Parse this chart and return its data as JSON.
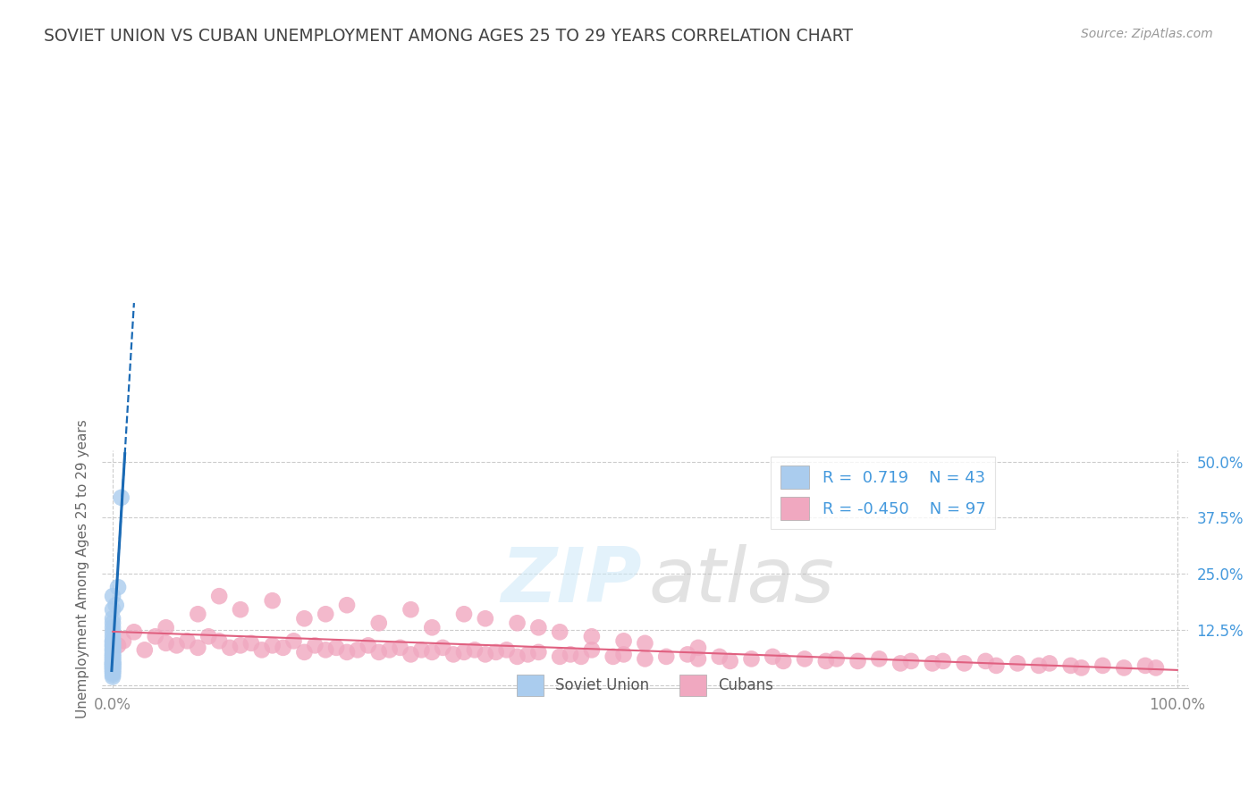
{
  "title": "SOVIET UNION VS CUBAN UNEMPLOYMENT AMONG AGES 25 TO 29 YEARS CORRELATION CHART",
  "source": "Source: ZipAtlas.com",
  "ylabel": "Unemployment Among Ages 25 to 29 years",
  "xlim": [
    -0.01,
    1.01
  ],
  "ylim": [
    -0.005,
    0.525
  ],
  "xtick_positions": [
    0.0,
    1.0
  ],
  "xtick_labels": [
    "0.0%",
    "100.0%"
  ],
  "ytick_positions": [
    0.0,
    0.125,
    0.25,
    0.375,
    0.5
  ],
  "ytick_labels": [
    "",
    "12.5%",
    "25.0%",
    "37.5%",
    "50.0%"
  ],
  "grid_yticks": [
    0.0,
    0.125,
    0.25,
    0.375,
    0.5
  ],
  "grid_xticks": [
    0.0,
    1.0
  ],
  "legend_r1": "R =  0.719",
  "legend_n1": "N = 43",
  "legend_r2": "R = -0.450",
  "legend_n2": "N = 97",
  "soviet_color": "#aaccee",
  "cuban_color": "#f0a8c0",
  "soviet_trend_color": "#1a6ab5",
  "cuban_trend_color": "#e06080",
  "background_color": "#ffffff",
  "grid_color": "#cccccc",
  "title_color": "#444444",
  "tick_color_right": "#4499dd",
  "tick_color_bottom": "#aaaaaa",
  "soviet_x": [
    0.0,
    0.0,
    0.0,
    0.0,
    0.0,
    0.0,
    0.0,
    0.0,
    0.0,
    0.0,
    0.0,
    0.0,
    0.0,
    0.0,
    0.0,
    0.0,
    0.0,
    0.0,
    0.0,
    0.0,
    0.0,
    0.0,
    0.0,
    0.0,
    0.0,
    0.0,
    0.0,
    0.0,
    0.0,
    0.0,
    0.0,
    0.0,
    0.0,
    0.0,
    0.0,
    0.0,
    0.0,
    0.0,
    0.0,
    0.0,
    0.003,
    0.005,
    0.008
  ],
  "soviet_y": [
    0.02,
    0.025,
    0.03,
    0.03,
    0.035,
    0.035,
    0.04,
    0.04,
    0.04,
    0.045,
    0.045,
    0.045,
    0.05,
    0.05,
    0.05,
    0.05,
    0.055,
    0.055,
    0.06,
    0.06,
    0.065,
    0.065,
    0.07,
    0.07,
    0.075,
    0.08,
    0.08,
    0.085,
    0.09,
    0.09,
    0.095,
    0.1,
    0.1,
    0.11,
    0.12,
    0.13,
    0.14,
    0.15,
    0.17,
    0.2,
    0.18,
    0.22,
    0.42
  ],
  "cuban_x": [
    0.005,
    0.01,
    0.02,
    0.03,
    0.04,
    0.05,
    0.06,
    0.07,
    0.08,
    0.09,
    0.1,
    0.11,
    0.12,
    0.13,
    0.14,
    0.15,
    0.16,
    0.17,
    0.18,
    0.19,
    0.2,
    0.21,
    0.22,
    0.23,
    0.24,
    0.25,
    0.26,
    0.27,
    0.28,
    0.29,
    0.3,
    0.31,
    0.32,
    0.33,
    0.34,
    0.35,
    0.36,
    0.37,
    0.38,
    0.39,
    0.4,
    0.42,
    0.43,
    0.44,
    0.45,
    0.47,
    0.48,
    0.5,
    0.52,
    0.54,
    0.55,
    0.57,
    0.58,
    0.6,
    0.62,
    0.63,
    0.65,
    0.67,
    0.68,
    0.7,
    0.72,
    0.74,
    0.75,
    0.77,
    0.78,
    0.8,
    0.82,
    0.83,
    0.85,
    0.87,
    0.88,
    0.9,
    0.91,
    0.93,
    0.95,
    0.97,
    0.98,
    0.05,
    0.08,
    0.1,
    0.12,
    0.15,
    0.18,
    0.2,
    0.22,
    0.25,
    0.28,
    0.3,
    0.33,
    0.35,
    0.38,
    0.4,
    0.42,
    0.45,
    0.48,
    0.5,
    0.55
  ],
  "cuban_y": [
    0.09,
    0.1,
    0.12,
    0.08,
    0.11,
    0.095,
    0.09,
    0.1,
    0.085,
    0.11,
    0.1,
    0.085,
    0.09,
    0.095,
    0.08,
    0.09,
    0.085,
    0.1,
    0.075,
    0.09,
    0.08,
    0.085,
    0.075,
    0.08,
    0.09,
    0.075,
    0.08,
    0.085,
    0.07,
    0.08,
    0.075,
    0.085,
    0.07,
    0.075,
    0.08,
    0.07,
    0.075,
    0.08,
    0.065,
    0.07,
    0.075,
    0.065,
    0.07,
    0.065,
    0.08,
    0.065,
    0.07,
    0.06,
    0.065,
    0.07,
    0.06,
    0.065,
    0.055,
    0.06,
    0.065,
    0.055,
    0.06,
    0.055,
    0.06,
    0.055,
    0.06,
    0.05,
    0.055,
    0.05,
    0.055,
    0.05,
    0.055,
    0.045,
    0.05,
    0.045,
    0.05,
    0.045,
    0.04,
    0.045,
    0.04,
    0.045,
    0.04,
    0.13,
    0.16,
    0.2,
    0.17,
    0.19,
    0.15,
    0.16,
    0.18,
    0.14,
    0.17,
    0.13,
    0.16,
    0.15,
    0.14,
    0.13,
    0.12,
    0.11,
    0.1,
    0.095,
    0.085
  ]
}
